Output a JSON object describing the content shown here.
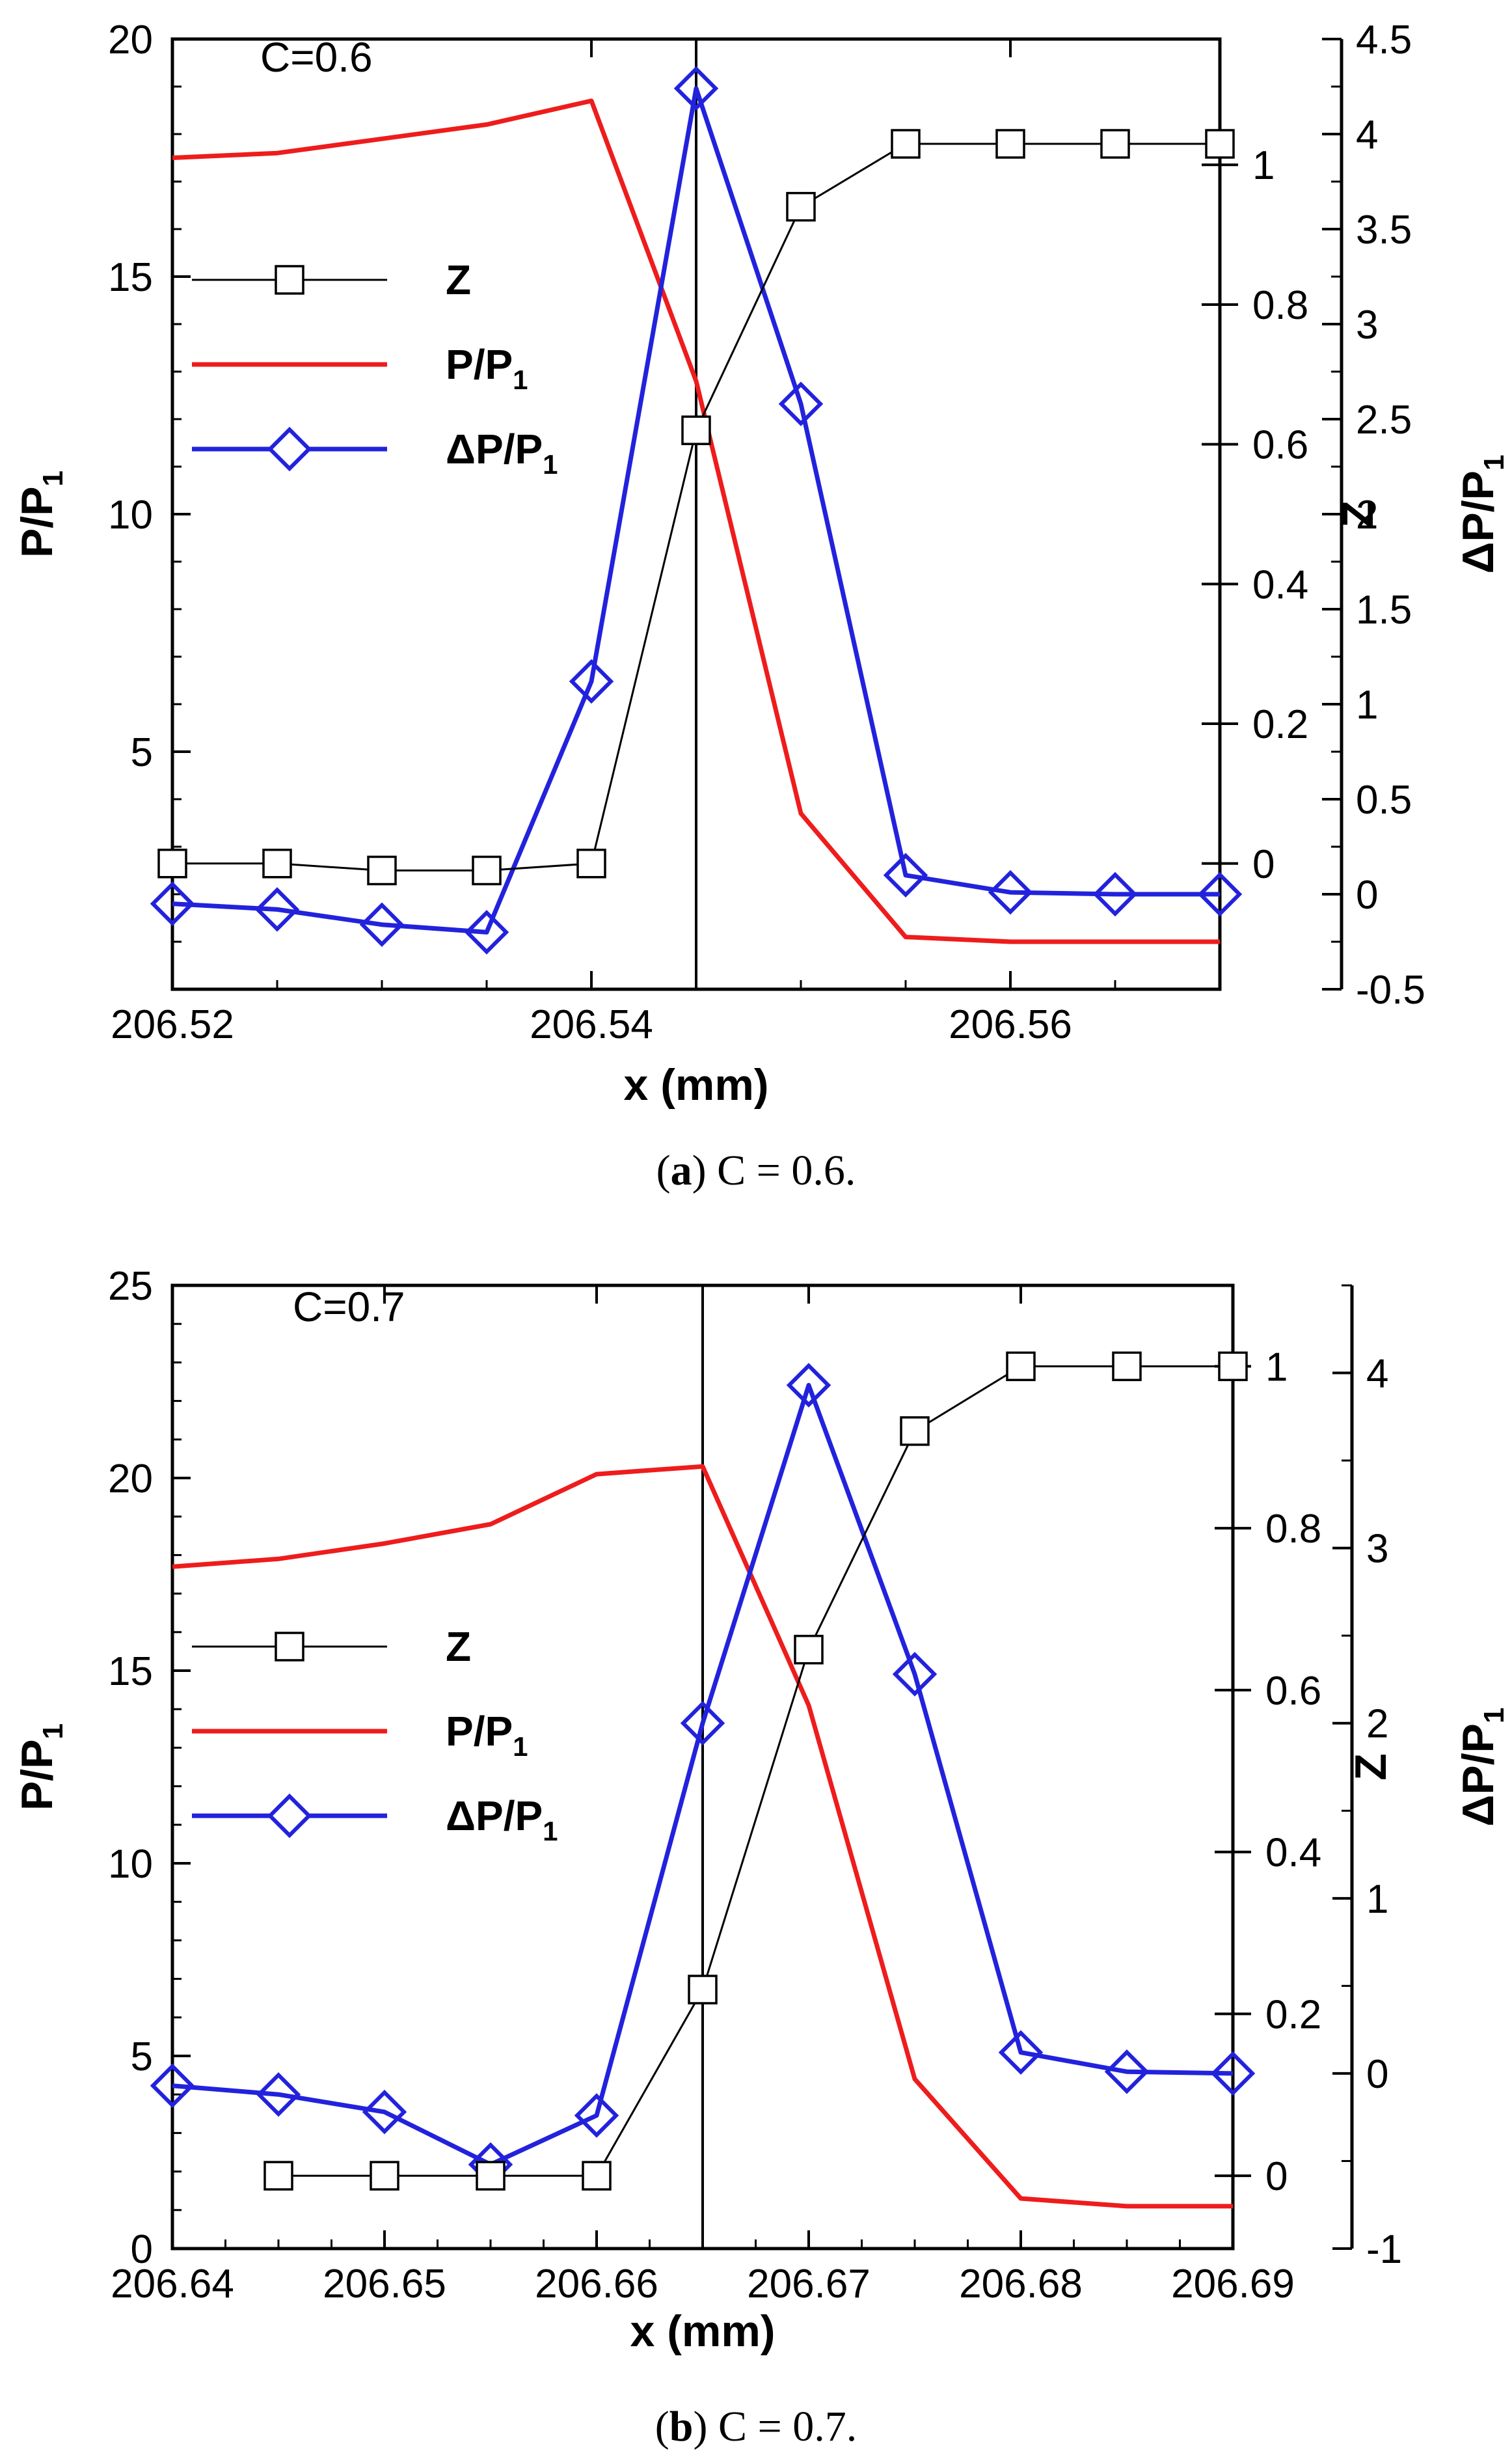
{
  "chart_data": [
    {
      "type": "line",
      "panel": "a",
      "annotation": "C=0.6",
      "caption": {
        "letter": "a",
        "text": " C = 0.6."
      },
      "xlabel": "x (mm)",
      "xlim": [
        206.52,
        206.57
      ],
      "xticks": [
        206.52,
        206.54,
        206.56
      ],
      "xtick_labels": [
        "206.52",
        "206.54",
        "206.56"
      ],
      "vline_x": 206.545,
      "left_axis": {
        "label_main": "P/P",
        "label_sub": "1",
        "lim": [
          0,
          20
        ],
        "ticks": [
          0,
          5,
          10,
          15,
          20
        ],
        "tick_labels": [
          "",
          "5",
          "10",
          "15",
          "20"
        ]
      },
      "mid_axis": {
        "label": "Z",
        "lim": [
          -0.18,
          1.18
        ],
        "ticks": [
          0,
          0.2,
          0.4,
          0.6,
          0.8,
          1
        ],
        "tick_labels": [
          "0",
          "0.2",
          "0.4",
          "0.6",
          "0.8",
          "1"
        ]
      },
      "right_axis": {
        "label_main": "ΔP/P",
        "label_sub": "1",
        "lim": [
          -0.5,
          4.5
        ],
        "ticks": [
          -0.5,
          0,
          0.5,
          1,
          1.5,
          2,
          2.5,
          3,
          3.5,
          4,
          4.5
        ],
        "tick_labels": [
          "-0.5",
          "0",
          "0.5",
          "1",
          "1.5",
          "2",
          "2.5",
          "3",
          "3.5",
          "4",
          "4.5"
        ]
      },
      "series": [
        {
          "name": "Z",
          "sub": "",
          "axis": "mid",
          "color": "#000000",
          "marker": "square",
          "x": [
            206.52,
            206.525,
            206.53,
            206.535,
            206.54,
            206.545,
            206.55,
            206.555,
            206.56,
            206.565,
            206.57
          ],
          "y": [
            0.0,
            0.0,
            -0.01,
            -0.01,
            0.0,
            0.62,
            0.94,
            1.03,
            1.03,
            1.03,
            1.03
          ]
        },
        {
          "name": "P/P",
          "sub": "1",
          "axis": "left",
          "color": "#ee1c1c",
          "marker": "none",
          "x": [
            206.52,
            206.525,
            206.53,
            206.535,
            206.54,
            206.545,
            206.55,
            206.555,
            206.56,
            206.565,
            206.57
          ],
          "y": [
            17.5,
            17.6,
            17.9,
            18.2,
            18.7,
            12.8,
            3.7,
            1.1,
            1.0,
            1.0,
            1.0
          ]
        },
        {
          "name": "ΔP/P",
          "sub": "1",
          "axis": "right",
          "color": "#2222dd",
          "marker": "diamond",
          "x": [
            206.52,
            206.525,
            206.53,
            206.535,
            206.54,
            206.545,
            206.55,
            206.555,
            206.56,
            206.565,
            206.57
          ],
          "y": [
            -0.05,
            -0.08,
            -0.16,
            -0.2,
            1.12,
            4.24,
            2.58,
            0.1,
            0.01,
            0.0,
            0.0
          ]
        }
      ]
    },
    {
      "type": "line",
      "panel": "b",
      "annotation": "C=0.7",
      "caption": {
        "letter": "b",
        "text": " C = 0.7."
      },
      "xlabel": "x (mm)",
      "xlim": [
        206.64,
        206.69
      ],
      "xticks": [
        206.64,
        206.65,
        206.66,
        206.67,
        206.68,
        206.69
      ],
      "xtick_labels": [
        "206.64",
        "206.65",
        "206.66",
        "206.67",
        "206.68",
        "206.69"
      ],
      "vline_x": 206.665,
      "left_axis": {
        "label_main": "P/P",
        "label_sub": "1",
        "lim": [
          0,
          25
        ],
        "ticks": [
          0,
          5,
          10,
          15,
          20,
          25
        ],
        "tick_labels": [
          "0",
          "5",
          "10",
          "15",
          "20",
          "25"
        ]
      },
      "mid_axis": {
        "label": "Z",
        "lim": [
          -0.09,
          1.1
        ],
        "ticks": [
          0,
          0.2,
          0.4,
          0.6,
          0.8,
          1
        ],
        "tick_labels": [
          "0",
          "0.2",
          "0.4",
          "0.6",
          "0.8",
          "1"
        ]
      },
      "right_axis": {
        "label_main": "ΔP/P",
        "label_sub": "1",
        "lim": [
          -1,
          4.5
        ],
        "ticks": [
          -1,
          0,
          1,
          2,
          3,
          4
        ],
        "tick_labels": [
          "-1",
          "0",
          "1",
          "2",
          "3",
          "4"
        ]
      },
      "series": [
        {
          "name": "Z",
          "sub": "",
          "axis": "mid",
          "color": "#000000",
          "marker": "square",
          "x": [
            206.645,
            206.65,
            206.655,
            206.66,
            206.665,
            206.67,
            206.675,
            206.68,
            206.685,
            206.69
          ],
          "y": [
            0.0,
            0.0,
            0.0,
            0.0,
            0.23,
            0.65,
            0.92,
            1.0,
            1.0,
            1.0
          ]
        },
        {
          "name": "P/P",
          "sub": "1",
          "axis": "left",
          "color": "#ee1c1c",
          "marker": "none",
          "x": [
            206.64,
            206.645,
            206.65,
            206.655,
            206.66,
            206.665,
            206.67,
            206.675,
            206.68,
            206.685,
            206.69
          ],
          "y": [
            17.7,
            17.9,
            18.3,
            18.8,
            20.1,
            20.3,
            14.1,
            4.4,
            1.3,
            1.1,
            1.1
          ]
        },
        {
          "name": "ΔP/P",
          "sub": "1",
          "axis": "right",
          "color": "#2222dd",
          "marker": "diamond",
          "x": [
            206.64,
            206.645,
            206.65,
            206.655,
            206.66,
            206.665,
            206.67,
            206.675,
            206.68,
            206.685,
            206.69
          ],
          "y": [
            -0.07,
            -0.12,
            -0.22,
            -0.52,
            -0.24,
            2.0,
            3.93,
            2.28,
            0.12,
            0.01,
            0.0
          ]
        }
      ]
    }
  ]
}
